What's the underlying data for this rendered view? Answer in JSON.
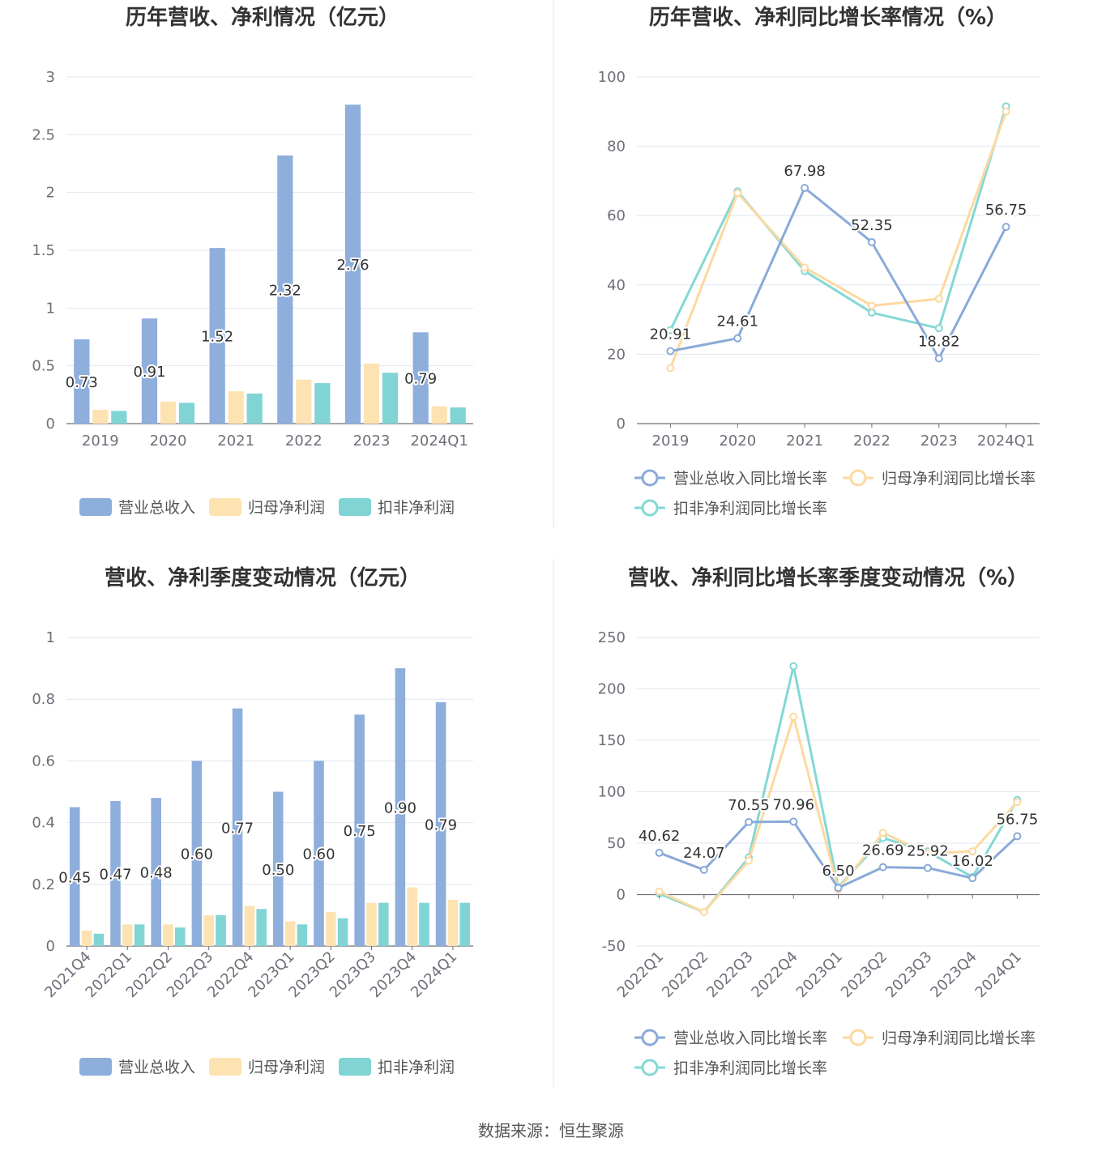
{
  "source_label": "数据来源：恒生聚源",
  "colors": {
    "revenue": "#8eaedc",
    "parent_profit": "#fde2b2",
    "deducted_profit": "#80d4d4",
    "revenue_line": "#8aaad8",
    "parent_line": "#fcd9a0",
    "deducted_line": "#84d8d4"
  },
  "chart_data": [
    {
      "type": "bar",
      "title": "历年营收、净利情况（亿元）",
      "categories": [
        "2019",
        "2020",
        "2021",
        "2022",
        "2023",
        "2024Q1"
      ],
      "ylim": [
        0,
        3
      ],
      "yticks": [
        "0",
        "0.5",
        "1",
        "1.5",
        "2",
        "2.5",
        "3"
      ],
      "series": [
        {
          "name": "营业总收入",
          "values": [
            0.73,
            0.91,
            1.52,
            2.32,
            2.76,
            0.79
          ],
          "labels": [
            "0.73",
            "0.91",
            "1.52",
            "2.32",
            "2.76",
            "0.79"
          ]
        },
        {
          "name": "归母净利润",
          "values": [
            0.12,
            0.19,
            0.28,
            0.38,
            0.52,
            0.15
          ]
        },
        {
          "name": "扣非净利润",
          "values": [
            0.11,
            0.18,
            0.26,
            0.35,
            0.44,
            0.14
          ]
        }
      ],
      "legend": "bottom",
      "grid": true
    },
    {
      "type": "line",
      "title": "历年营收、净利同比增长率情况（%）",
      "categories": [
        "2019",
        "2020",
        "2021",
        "2022",
        "2023",
        "2024Q1"
      ],
      "ylim": [
        0,
        100
      ],
      "yticks": [
        "0",
        "20",
        "40",
        "60",
        "80",
        "100"
      ],
      "series": [
        {
          "name": "营业总收入同比增长率",
          "values": [
            20.91,
            24.61,
            67.98,
            52.35,
            18.82,
            56.75
          ],
          "labels": [
            "20.91",
            "24.61",
            "67.98",
            "52.35",
            "18.82",
            "56.75"
          ]
        },
        {
          "name": "归母净利润同比增长率",
          "values": [
            16.0,
            66.5,
            45.0,
            34.0,
            36.0,
            90.0
          ]
        },
        {
          "name": "扣非净利润同比增长率",
          "values": [
            27.0,
            67.0,
            44.0,
            32.0,
            27.5,
            91.5
          ]
        }
      ],
      "legend": "bottom",
      "grid": true
    },
    {
      "type": "bar",
      "title": "营收、净利季度变动情况（亿元）",
      "categories": [
        "2021Q4",
        "2022Q1",
        "2022Q2",
        "2022Q3",
        "2022Q4",
        "2023Q1",
        "2023Q2",
        "2023Q3",
        "2023Q4",
        "2024Q1"
      ],
      "ylim": [
        0,
        1
      ],
      "yticks": [
        "0",
        "0.2",
        "0.4",
        "0.6",
        "0.8",
        "1"
      ],
      "series": [
        {
          "name": "营业总收入",
          "values": [
            0.45,
            0.47,
            0.48,
            0.6,
            0.77,
            0.5,
            0.6,
            0.75,
            0.9,
            0.79
          ],
          "labels": [
            "0.45",
            "0.47",
            "0.48",
            "0.60",
            "0.77",
            "0.50",
            "0.60",
            "0.75",
            "0.90",
            "0.79"
          ]
        },
        {
          "name": "归母净利润",
          "values": [
            0.05,
            0.07,
            0.07,
            0.1,
            0.13,
            0.08,
            0.11,
            0.14,
            0.19,
            0.15
          ]
        },
        {
          "name": "扣非净利润",
          "values": [
            0.04,
            0.07,
            0.06,
            0.1,
            0.12,
            0.07,
            0.09,
            0.14,
            0.14,
            0.14
          ]
        }
      ],
      "legend": "bottom",
      "grid": true,
      "rotated_x_labels": true
    },
    {
      "type": "line",
      "title": "营收、净利同比增长率季度变动情况（%）",
      "categories": [
        "2022Q1",
        "2022Q2",
        "2022Q3",
        "2022Q4",
        "2023Q1",
        "2023Q2",
        "2023Q3",
        "2023Q4",
        "2024Q1"
      ],
      "ylim": [
        -50,
        250
      ],
      "yticks": [
        "-50",
        "0",
        "50",
        "100",
        "150",
        "200",
        "250"
      ],
      "series": [
        {
          "name": "营业总收入同比增长率",
          "values": [
            40.62,
            24.07,
            70.55,
            70.96,
            6.5,
            26.69,
            25.92,
            16.02,
            56.75
          ],
          "labels": [
            "40.62",
            "24.07",
            "70.55",
            "70.96",
            "6.50",
            "26.69",
            "25.92",
            "16.02",
            "56.75"
          ]
        },
        {
          "name": "归母净利润同比增长率",
          "values": [
            3,
            -17,
            33,
            173,
            5,
            60,
            40,
            42,
            90
          ]
        },
        {
          "name": "扣非净利润同比增长率",
          "values": [
            1,
            -17,
            36,
            222,
            7,
            55,
            42,
            17,
            92
          ]
        }
      ],
      "legend": "bottom",
      "grid": true,
      "rotated_x_labels": true
    }
  ]
}
